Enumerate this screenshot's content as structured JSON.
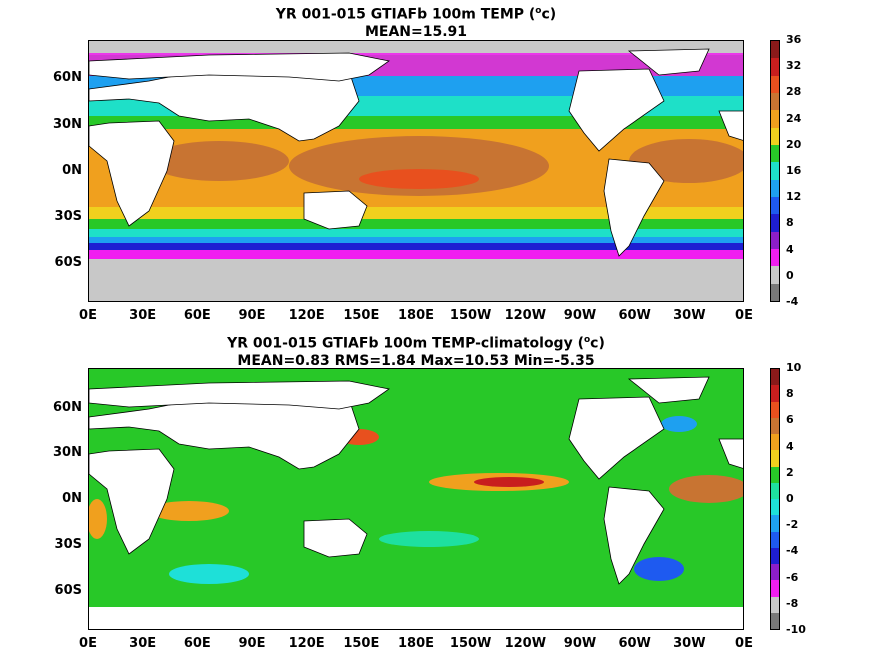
{
  "panels": [
    {
      "title_line1_pre": "YR 001-015 GTIAFb 100m TEMP (",
      "title_sup": "o",
      "title_line1_post": "c)",
      "title_line2": "MEAN=15.91",
      "colorbar_labels": [
        "36",
        "32",
        "28",
        "24",
        "20",
        "16",
        "12",
        "8",
        "4",
        "0",
        "-4"
      ],
      "colorbar_colors": [
        "#8b1a1a",
        "#c81e1e",
        "#e8501e",
        "#c87432",
        "#f0a01e",
        "#f0d01e",
        "#28c828",
        "#1ee0c8",
        "#1ea0f0",
        "#1e5af0",
        "#1e1ed2",
        "#8c1ec8",
        "#f01ef0",
        "#c8c8c8",
        "#787878"
      ]
    },
    {
      "title_line1_pre": "YR 001-015 GTIAFb 100m TEMP-climatology (",
      "title_sup": "o",
      "title_line1_post": "c)",
      "title_line2": "MEAN=0.83  RMS=1.84  Max=10.53  Min=-5.35",
      "colorbar_labels": [
        "10",
        "8",
        "6",
        "4",
        "2",
        "0",
        "-2",
        "-4",
        "-6",
        "-8",
        "-10"
      ],
      "colorbar_colors": [
        "#8b1a1a",
        "#c81e1e",
        "#e8501e",
        "#c87432",
        "#f0a01e",
        "#f0d01e",
        "#28c828",
        "#1ee0a0",
        "#1ee0d8",
        "#1ea0f0",
        "#1e5af0",
        "#1e1ed2",
        "#8c1ec8",
        "#f01ef0",
        "#c8c8c8",
        "#787878"
      ]
    }
  ],
  "lat_labels": [
    "60N",
    "30N",
    "0N",
    "30S",
    "60S"
  ],
  "lon_labels": [
    "0E",
    "30E",
    "60E",
    "90E",
    "120E",
    "150E",
    "180E",
    "150W",
    "120W",
    "90W",
    "60W",
    "30W",
    "0E"
  ],
  "land_color": "#ffffff",
  "ice_color": "#c8c8c8"
}
